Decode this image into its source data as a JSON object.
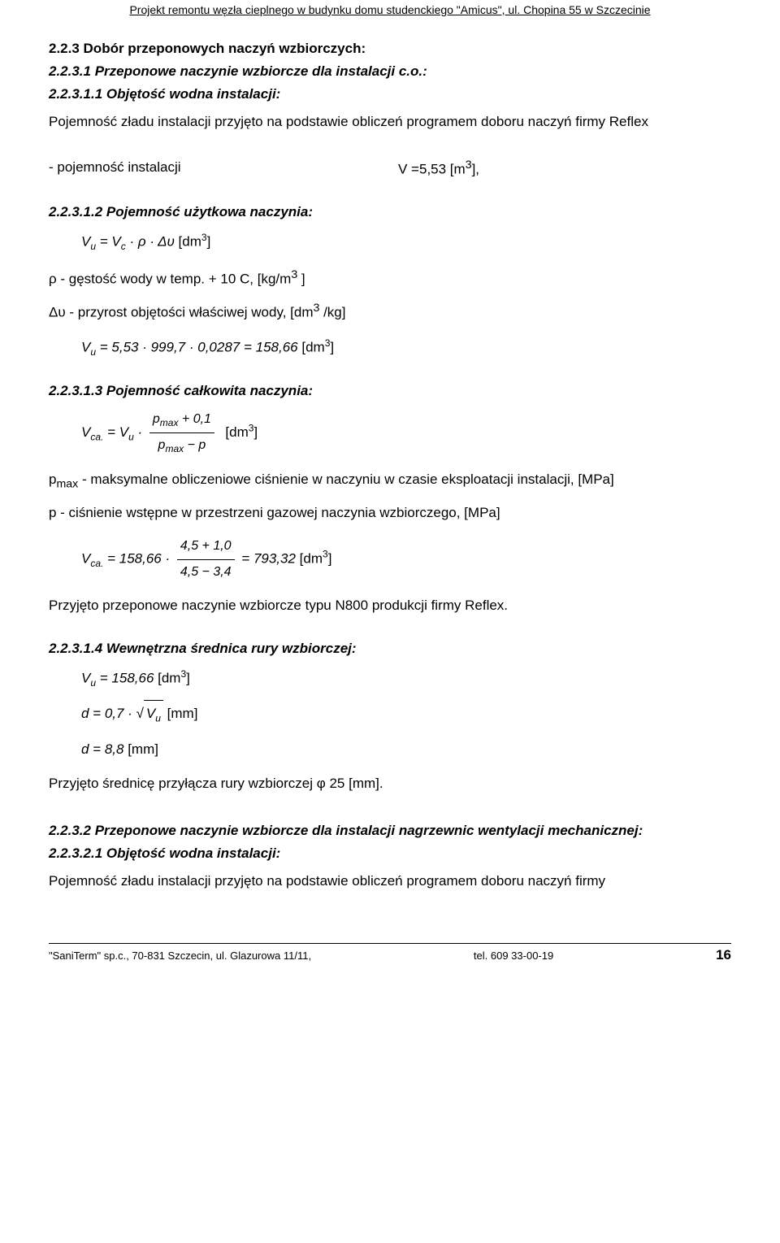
{
  "header": "Projekt remontu węzła cieplnego w budynku domu studenckiego \"Amicus\", ul. Chopina 55 w Szczecinie",
  "s2_2_3": {
    "title": "2.2.3 Dobór przeponowych naczyń wzbiorczych:"
  },
  "s2_2_3_1": {
    "title": "2.2.3.1 Przeponowe naczynie wzbiorcze dla instalacji c.o.:"
  },
  "s2_2_3_1_1": {
    "title": "2.2.3.1.1 Objętość wodna instalacji:",
    "p1": "Pojemność zładu instalacji przyjęto na podstawie obliczeń programem doboru naczyń firmy Reflex",
    "left": "- pojemność instalacji",
    "right_v": "V =5,53 [m",
    "right_unit_close": "],"
  },
  "s2_2_3_1_2": {
    "title": "2.2.3.1.2 Pojemność użytkowa naczynia:",
    "rho_line": "ρ - gęstość wody w temp. + 10 C, [kg/m",
    "rho_unit_close": " ]",
    "dv_line": "Δυ - przyrost objętości właściwej wody, [dm",
    "dv_unit_close": " /kg]"
  },
  "s2_2_3_1_3": {
    "title": "2.2.3.1.3 Pojemność całkowita naczynia:",
    "pmax_line": "p",
    "pmax_text1": " - maksymalne obliczeniowe ciśnienie w naczyniu w czasie eksploatacji instalacji, [MPa]",
    "p_line": "p - ciśnienie wstępne w przestrzeni gazowej naczynia wzbiorczego, [MPa]",
    "concl": "Przyjęto przeponowe naczynie wzbiorcze typu N800 produkcji firmy Reflex."
  },
  "s2_2_3_1_4": {
    "title": "2.2.3.1.4 Wewnętrzna średnica rury wzbiorczej:",
    "concl": "Przyjęto średnicę przyłącza rury wzbiorczej φ 25 [mm]."
  },
  "s2_2_3_2": {
    "title": "2.2.3.2 Przeponowe naczynie wzbiorcze dla instalacji nagrzewnic wentylacji mechanicznej:"
  },
  "s2_2_3_2_1": {
    "title": "2.2.3.2.1 Objętość wodna instalacji:",
    "p1": "Pojemność zładu instalacji przyjęto na podstawie obliczeń programem doboru naczyń firmy"
  },
  "eq": {
    "vu_def_lhs": "V",
    "vu_def_rhs1": " = V",
    "vu_def_rhs2": " · ρ · Δυ ",
    "dm3_open": "[dm",
    "dm3_close": "]",
    "vu_calc": " = 5,53 · 999,7 · 0,0287 = 158,66 ",
    "vca_lhs": "V",
    "vca_eq_vu": " = V",
    "frac_num": "p",
    "frac_num_plus": " + 0,1",
    "frac_den": "p",
    "frac_den_minus": " − p",
    "vca_calc_lhs": " = 158,66 · ",
    "vca_frac2_num": "4,5 + 1,0",
    "vca_frac2_den": "4,5 − 3,4",
    "vca_calc_res": " = 793,32 ",
    "vu_val": " = 158,66 ",
    "d_lhs": "d = 0,7 · ",
    "mm": " [mm]",
    "d_res": "d = 8,8"
  },
  "subscripts": {
    "u": "u",
    "c": "c",
    "ca": "ca.",
    "max": "max"
  },
  "sups": {
    "three": "3"
  },
  "footer": {
    "left": "\"SaniTerm\" sp.c., 70-831 Szczecin, ul. Glazurowa 11/11,",
    "mid": "tel. 609 33-00-19",
    "page": "16"
  }
}
